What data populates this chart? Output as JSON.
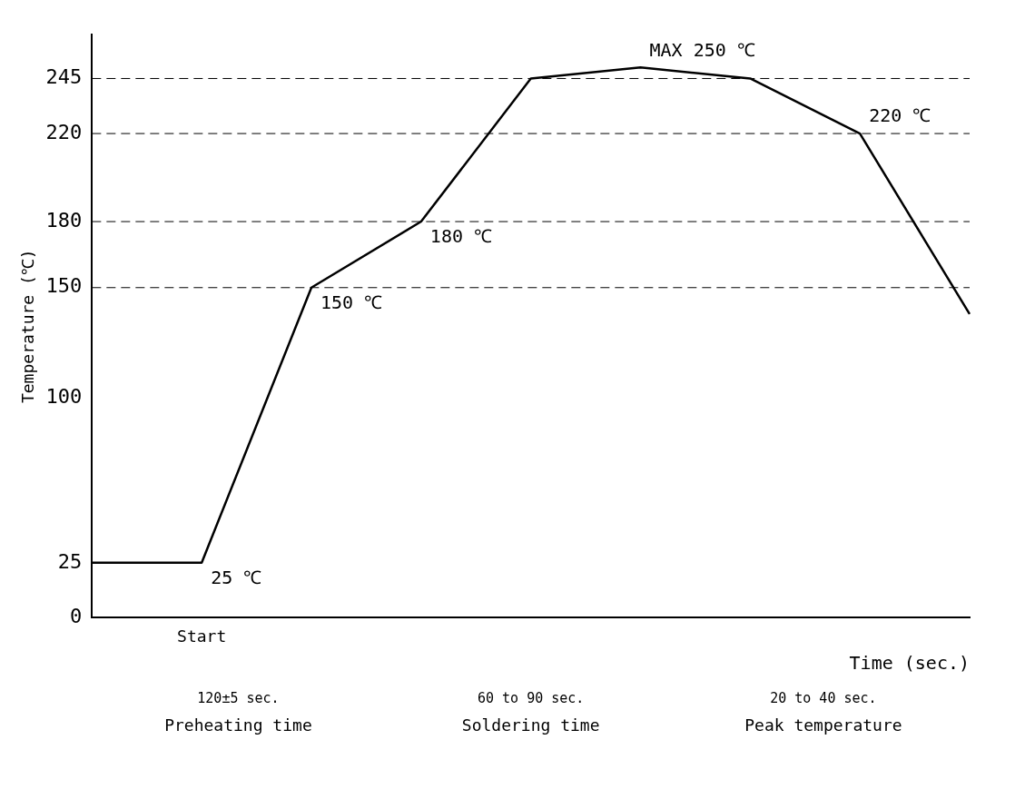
{
  "chart_data": {
    "type": "line",
    "xlabel": "Time (sec.)",
    "ylabel": "Temperature (℃)",
    "categories": [
      null,
      "Start",
      null,
      null,
      null,
      null,
      null,
      null,
      null
    ],
    "series": [
      {
        "color": "#000000",
        "values": [
          25,
          25,
          150,
          180,
          245,
          250,
          245,
          220,
          138
        ],
        "value_labels": [
          null,
          "25 ℃",
          "150 ℃",
          "180 ℃",
          null,
          "MAX 250 ℃",
          null,
          "220 ℃",
          null
        ]
      }
    ],
    "ylim": [
      0,
      265
    ],
    "yticks": [
      0,
      25,
      100,
      150,
      180,
      220,
      245
    ],
    "ref_lines": [
      {
        "axis": "y",
        "value": 245,
        "line_style": "dashed"
      },
      {
        "axis": "y",
        "value": 220,
        "line_style": "dashed"
      },
      {
        "axis": "y",
        "value": 180,
        "line_style": "dashed"
      },
      {
        "axis": "y",
        "value": 150,
        "line_style": "dashed"
      }
    ],
    "annotations": [
      "120±5 sec.",
      "Preheating time",
      "60 to 90 sec.",
      "Soldering time",
      "20 to 40 sec.",
      "Peak temperature"
    ],
    "grid": false,
    "legend": false,
    "marker": "none",
    "line_style": "solid"
  }
}
